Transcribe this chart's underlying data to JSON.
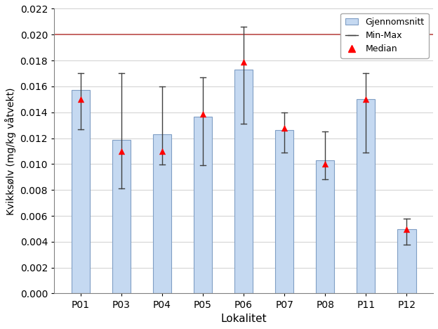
{
  "categories": [
    "P01",
    "P03",
    "P04",
    "P05",
    "P06",
    "P07",
    "P08",
    "P11",
    "P12"
  ],
  "mean": [
    0.0157,
    0.01185,
    0.0123,
    0.01365,
    0.0173,
    0.01265,
    0.0103,
    0.015,
    0.00495
  ],
  "min": [
    0.0127,
    0.0081,
    0.00995,
    0.0099,
    0.0131,
    0.0109,
    0.0088,
    0.0109,
    0.0038
  ],
  "max": [
    0.017,
    0.017,
    0.016,
    0.0167,
    0.0206,
    0.014,
    0.0125,
    0.017,
    0.0058
  ],
  "median": [
    0.015,
    0.011,
    0.011,
    0.0139,
    0.0179,
    0.0128,
    0.01,
    0.015,
    0.00495
  ],
  "eqs_line": 0.02,
  "bar_color": "#c5d9f1",
  "bar_edgecolor": "#7f9ec4",
  "eqs_color": "#c0504d",
  "median_color": "#ff0000",
  "errorbar_color": "#404040",
  "xlabel": "Lokalitet",
  "ylabel": "Kvikksølv (mg/kg våtvekt)",
  "ylim": [
    0.0,
    0.022
  ],
  "yticks": [
    0.0,
    0.002,
    0.004,
    0.006,
    0.008,
    0.01,
    0.012,
    0.014,
    0.016,
    0.018,
    0.02,
    0.022
  ],
  "legend_gjennomsnitt": "Gjennomsnitt",
  "legend_minmax": "Min-Max",
  "legend_median": "Median",
  "figsize": [
    6.24,
    4.68
  ],
  "dpi": 100
}
